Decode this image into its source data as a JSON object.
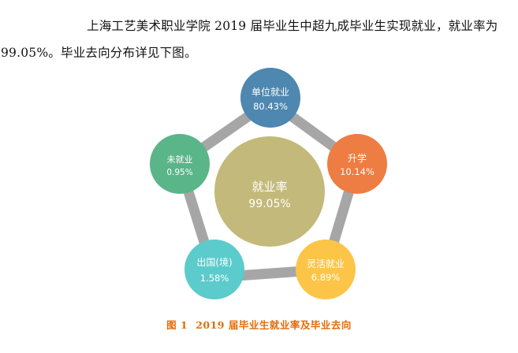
{
  "paragraph": {
    "line1": "上海工艺美术职业学院  2019  届毕业生中超九成毕业生实现就业，就业率为",
    "line2": "99.05%。毕业去向分布详见下图。"
  },
  "diagram": {
    "center": {
      "label": "就业率",
      "value": "99.05%",
      "color": "#c3b97a"
    },
    "nodes": [
      {
        "id": "employed",
        "label": "单位就业",
        "value": "80.43%",
        "color": "#4e87b0"
      },
      {
        "id": "further-study",
        "label": "升学",
        "value": "10.14%",
        "color": "#ee7d43"
      },
      {
        "id": "flexible",
        "label": "灵活就业",
        "value": "6.89%",
        "color": "#fcc548"
      },
      {
        "id": "abroad",
        "label": "出国(境)",
        "value": "1.58%",
        "color": "#5bcbcb"
      },
      {
        "id": "unemployed",
        "label": "未就业",
        "value": "0.95%",
        "color": "#5ab589"
      }
    ],
    "ring_color": "#a6a6a6"
  },
  "caption": {
    "figure_no": "图 1",
    "title": "2019 届毕业生就业率及毕业去向"
  }
}
